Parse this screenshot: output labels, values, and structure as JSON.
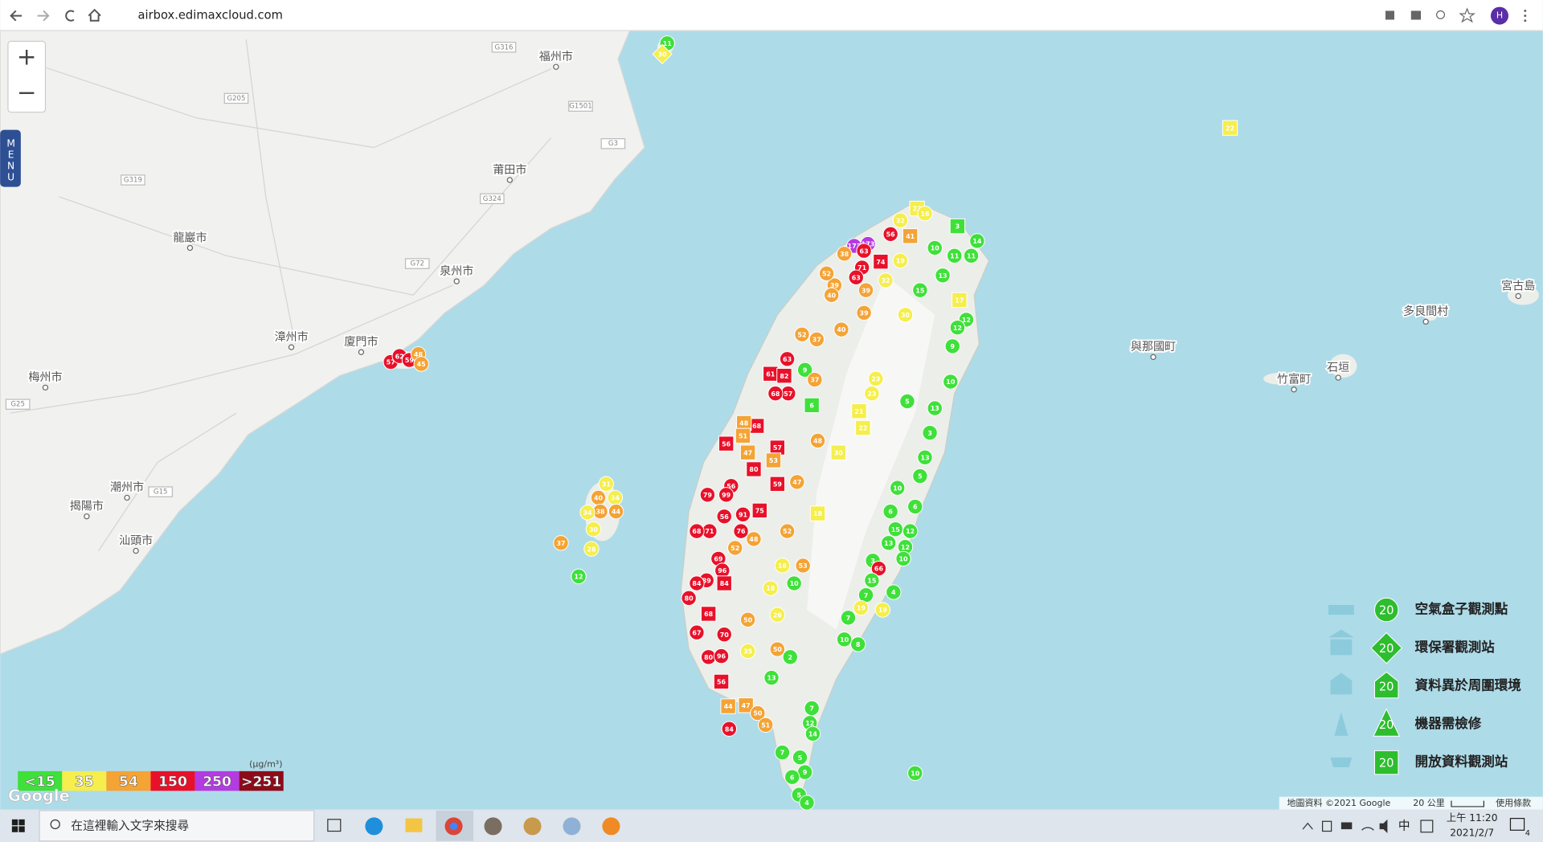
{
  "browser": {
    "url": "airbox.edimaxcloud.com",
    "profile": "H"
  },
  "map": {
    "menu": "MENU",
    "zoom_in": "+",
    "zoom_out": "−",
    "logo": "Google",
    "attribution": "地圖資料 ©2021 Google",
    "scale": "20 公里",
    "terms": "使用條款",
    "places": [
      "福州市",
      "莆田市",
      "龍巖市",
      "泉州市",
      "漳州市",
      "廈門市",
      "梅州市",
      "潮州市",
      "揭陽市",
      "汕頭市",
      "宮古島",
      "多良間村",
      "與那國町",
      "竹富町",
      "石垣"
    ],
    "roads": [
      "G316",
      "G1501",
      "G3",
      "G205",
      "G324",
      "G319",
      "G15",
      "G25",
      "G72"
    ]
  },
  "legend": {
    "unit": "(μg/m³)",
    "levels": [
      {
        "value": 15,
        "label": "<15",
        "color": "#3fe03a"
      },
      {
        "value": 35,
        "color": "#f5ee4c"
      },
      {
        "value": 54,
        "color": "#f4a335"
      },
      {
        "value": 150,
        "color": "#e8112a"
      },
      {
        "value": 250,
        "color": "#b43be0"
      },
      {
        "value": 251,
        "label": ">251",
        "color": "#8e0b1a"
      }
    ]
  },
  "station_types": {
    "sample": 20,
    "items": [
      "空氣盒子觀測點",
      "環保署觀測站",
      "資料異於周圍環境",
      "機器需檢修",
      "開放資料觀測站"
    ]
  },
  "stations": {
    "values": [
      57,
      62,
      59,
      48,
      45,
      11,
      30,
      22,
      31,
      40,
      34,
      38,
      44,
      34,
      30,
      37,
      28,
      12,
      23,
      32,
      16,
      41,
      56,
      3,
      14,
      11,
      11,
      173,
      173,
      63,
      74,
      71,
      38,
      63,
      39,
      40,
      52,
      39,
      32,
      19,
      15,
      10,
      13,
      17,
      12,
      12,
      9,
      10,
      30,
      39,
      40,
      37,
      52,
      63,
      9,
      61,
      82,
      37,
      57,
      68,
      6,
      23,
      23,
      21,
      22,
      5,
      13,
      3,
      13,
      5,
      10,
      6,
      6,
      15,
      12,
      13,
      12,
      10,
      3,
      66,
      4,
      15,
      7,
      19,
      19,
      7,
      10,
      8,
      68,
      48,
      51,
      57,
      53,
      47,
      56,
      80,
      59,
      47,
      48,
      30,
      18,
      56,
      79,
      99,
      91,
      75,
      56,
      71,
      76,
      68,
      48,
      52,
      69,
      52,
      53,
      16,
      96,
      89,
      84,
      84,
      80,
      68,
      67,
      70,
      50,
      26,
      10,
      18,
      80,
      96,
      56,
      35,
      50,
      2,
      44,
      47,
      50,
      51,
      84,
      13,
      7,
      12,
      14,
      7,
      5,
      9,
      6,
      5,
      4,
      10
    ],
    "kinds": [
      0,
      0,
      0,
      0,
      0,
      0,
      1,
      4,
      0,
      0,
      0,
      0,
      0,
      0,
      0,
      0,
      0,
      0,
      4,
      0,
      0,
      4,
      0,
      4,
      0,
      0,
      0,
      0,
      0,
      0,
      4,
      0,
      0,
      0,
      0,
      0,
      0,
      0,
      0,
      0,
      0,
      0,
      0,
      4,
      0,
      0,
      0,
      0,
      0,
      0,
      0,
      0,
      0,
      0,
      0,
      4,
      4,
      0,
      0,
      0,
      4,
      0,
      0,
      4,
      4,
      0,
      0,
      0,
      0,
      0,
      0,
      0,
      0,
      0,
      0,
      0,
      0,
      0,
      0,
      0,
      0,
      0,
      0,
      0,
      0,
      0,
      0,
      0,
      4,
      4,
      4,
      4,
      4,
      4,
      4,
      4,
      4,
      0,
      0,
      4,
      4,
      0,
      0,
      0,
      0,
      4,
      0,
      0,
      0,
      0,
      0,
      0,
      0,
      0,
      0,
      0,
      0,
      0,
      4,
      0,
      0,
      4,
      0,
      0,
      0,
      0,
      0,
      0,
      0,
      0,
      4,
      0,
      0,
      0,
      4,
      4,
      0,
      0,
      0,
      0,
      0,
      0,
      0,
      0,
      0,
      0,
      0,
      0,
      0,
      0
    ]
  },
  "taskbar": {
    "search": "在這裡輸入文字來搜尋",
    "ime": "中",
    "time": "上午 11:20",
    "date": "2021/2/7",
    "notifications": "4"
  }
}
